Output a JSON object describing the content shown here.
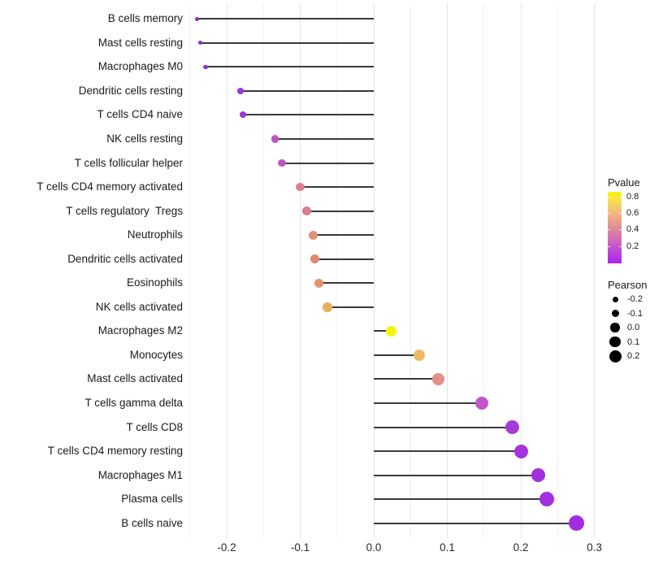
{
  "chart_data": {
    "type": "lollipop",
    "title": "",
    "xlabel": "",
    "ylabel": "",
    "xlim": [
      -0.27,
      0.315
    ],
    "baseline": 0.0,
    "grid": "vertical-only",
    "x_major_gridlines": [
      -0.2,
      -0.1,
      0.0,
      0.1,
      0.2,
      0.3
    ],
    "x_minor_gridlines": [
      -0.25,
      -0.15,
      -0.05,
      0.05,
      0.15,
      0.25
    ],
    "x_ticks": [
      {
        "value": -0.2,
        "label": "-0.2"
      },
      {
        "value": -0.1,
        "label": "-0.1"
      },
      {
        "value": 0.0,
        "label": "0.0"
      },
      {
        "value": 0.1,
        "label": "0.1"
      },
      {
        "value": 0.2,
        "label": "0.2"
      },
      {
        "value": 0.3,
        "label": "0.3"
      }
    ],
    "points": [
      {
        "label": "B cells memory",
        "pearson": -0.24,
        "color": "#8D2BDB",
        "size": 5
      },
      {
        "label": "Mast cells resting",
        "pearson": -0.236,
        "color": "#8D2BDB",
        "size": 5
      },
      {
        "label": "Macrophages M0",
        "pearson": -0.229,
        "color": "#9130DD",
        "size": 5.5
      },
      {
        "label": "Dendritic cells resting",
        "pearson": -0.181,
        "color": "#9A36D9",
        "size": 8
      },
      {
        "label": "T cells CD4 naive",
        "pearson": -0.178,
        "color": "#9A36D9",
        "size": 8
      },
      {
        "label": "NK cells resting",
        "pearson": -0.134,
        "color": "#BC55BE",
        "size": 9.5
      },
      {
        "label": "T cells follicular helper",
        "pearson": -0.125,
        "color": "#BE58BC",
        "size": 9.5
      },
      {
        "label": "T cells CD4 memory activated",
        "pearson": -0.1,
        "color": "#DC8090",
        "size": 10.5
      },
      {
        "label": "T cells regulatory  Tregs",
        "pearson": -0.091,
        "color": "#D97F8C",
        "size": 10.5
      },
      {
        "label": "Neutrophils",
        "pearson": -0.082,
        "color": "#E18F79",
        "size": 11
      },
      {
        "label": "Dendritic cells activated",
        "pearson": -0.08,
        "color": "#DD8A72",
        "size": 11
      },
      {
        "label": "Eosinophils",
        "pearson": -0.075,
        "color": "#E1946F",
        "size": 11
      },
      {
        "label": "NK cells activated",
        "pearson": -0.063,
        "color": "#EBAF5C",
        "size": 11.5
      },
      {
        "label": "Macrophages M2",
        "pearson": 0.024,
        "color": "#F2F40C",
        "size": 13
      },
      {
        "label": "Monocytes",
        "pearson": 0.062,
        "color": "#EFBA62",
        "size": 14
      },
      {
        "label": "Mast cells activated",
        "pearson": 0.088,
        "color": "#E58E8A",
        "size": 14.5
      },
      {
        "label": "T cells gamma delta",
        "pearson": 0.147,
        "color": "#C256C9",
        "size": 16
      },
      {
        "label": "T cells CD8",
        "pearson": 0.188,
        "color": "#A63AD8",
        "size": 17
      },
      {
        "label": "T cells CD4 memory resting",
        "pearson": 0.201,
        "color": "#A434DC",
        "size": 17
      },
      {
        "label": "Macrophages M1",
        "pearson": 0.224,
        "color": "#A22FE0",
        "size": 17.5
      },
      {
        "label": "Plasma cells",
        "pearson": 0.235,
        "color": "#A22FE0",
        "size": 18
      },
      {
        "label": "B cells naive",
        "pearson": 0.276,
        "color": "#A32BE2",
        "size": 19
      }
    ],
    "legend": {
      "pvalue": {
        "title": "Pvalue",
        "gradient_top_to_bottom": [
          "#F6F60A",
          "#F6D664",
          "#EFAF83",
          "#E18E97",
          "#D16CB8",
          "#BC44D9",
          "#AC24EC"
        ],
        "ticks": [
          {
            "label": "0.8",
            "pos": 0.0625
          },
          {
            "label": "0.6",
            "pos": 0.295
          },
          {
            "label": "0.4",
            "pos": 0.528
          },
          {
            "label": "0.2",
            "pos": 0.76
          }
        ]
      },
      "pearson": {
        "title": "Pearson",
        "entries": [
          {
            "label": "-0.2",
            "size": 7
          },
          {
            "label": "-0.1",
            "size": 9
          },
          {
            "label": "0.0",
            "size": 11.5
          },
          {
            "label": "0.1",
            "size": 13.5
          },
          {
            "label": "0.2",
            "size": 15
          }
        ]
      }
    }
  }
}
